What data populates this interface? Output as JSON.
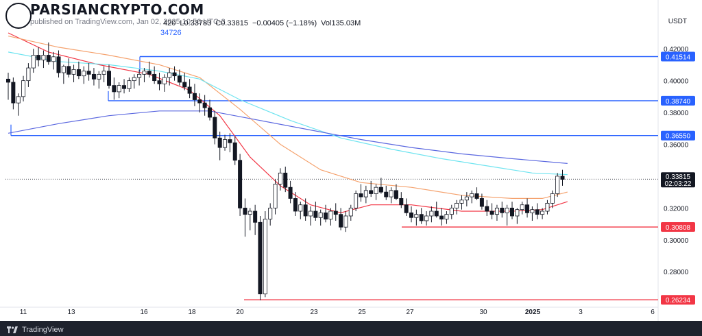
{
  "watermark": {
    "text": "PARSIANCRYPTO.COM"
  },
  "header": {
    "partial_text": "published on TradingView.com, Jan 02, 2025 10:56 UTC-3",
    "ohlc": [
      "420",
      "L0.33783",
      "C0.33815",
      "−0.00405 (−1.18%)",
      "Vol135.03M"
    ],
    "partial_indicator": "34726"
  },
  "currency": "USDT",
  "footer": {
    "brand": "TradingView"
  },
  "colors": {
    "candle": "#131722",
    "blue_level": "#2962ff",
    "red_level": "#f23645",
    "ma_red": "#f23645",
    "ma_orange": "#f5a26e",
    "ma_cyan": "#6fe4f0",
    "ma_blue": "#5b68e0"
  },
  "chart_data": {
    "type": "line",
    "x_tick_labels": [
      "11",
      "13",
      "16",
      "18",
      "20",
      "23",
      "25",
      "27",
      "30",
      "2025",
      "3",
      "6"
    ],
    "y_tick_labels": [
      "0.42000",
      "0.40000",
      "0.38000",
      "0.36000",
      "0.32000",
      "0.30000",
      "0.28000"
    ],
    "ylim": [
      0.262,
      0.43
    ],
    "horizontal_levels": [
      {
        "label": "0.41514",
        "value": 0.41514,
        "color": "blue"
      },
      {
        "label": "0.38740",
        "value": 0.3874,
        "color": "blue"
      },
      {
        "label": "0.36550",
        "value": 0.3655,
        "color": "blue"
      },
      {
        "label": "0.30808",
        "value": 0.30808,
        "color": "red"
      },
      {
        "label": "0.26234",
        "value": 0.26234,
        "color": "red"
      }
    ],
    "last_price": {
      "value": 0.33815,
      "label": "0.33815",
      "countdown": "02:03:22"
    },
    "candles": [
      [
        0.401,
        0.405,
        0.388,
        0.399
      ],
      [
        0.399,
        0.402,
        0.382,
        0.386
      ],
      [
        0.386,
        0.392,
        0.378,
        0.39
      ],
      [
        0.39,
        0.403,
        0.387,
        0.4
      ],
      [
        0.4,
        0.411,
        0.396,
        0.408
      ],
      [
        0.408,
        0.42,
        0.405,
        0.416
      ],
      [
        0.416,
        0.421,
        0.409,
        0.413
      ],
      [
        0.413,
        0.419,
        0.408,
        0.416
      ],
      [
        0.416,
        0.424,
        0.41,
        0.412
      ],
      [
        0.412,
        0.418,
        0.407,
        0.415
      ],
      [
        0.415,
        0.419,
        0.402,
        0.405
      ],
      [
        0.405,
        0.41,
        0.398,
        0.409
      ],
      [
        0.409,
        0.414,
        0.402,
        0.404
      ],
      [
        0.404,
        0.41,
        0.399,
        0.407
      ],
      [
        0.407,
        0.412,
        0.401,
        0.403
      ],
      [
        0.403,
        0.409,
        0.398,
        0.406
      ],
      [
        0.406,
        0.411,
        0.4,
        0.404
      ],
      [
        0.404,
        0.408,
        0.397,
        0.401
      ],
      [
        0.401,
        0.406,
        0.395,
        0.404
      ],
      [
        0.404,
        0.409,
        0.399,
        0.406
      ],
      [
        0.406,
        0.41,
        0.395,
        0.397
      ],
      [
        0.397,
        0.402,
        0.388,
        0.393
      ],
      [
        0.393,
        0.399,
        0.389,
        0.397
      ],
      [
        0.397,
        0.401,
        0.392,
        0.395
      ],
      [
        0.395,
        0.402,
        0.393,
        0.4
      ],
      [
        0.4,
        0.404,
        0.395,
        0.402
      ],
      [
        0.402,
        0.407,
        0.397,
        0.404
      ],
      [
        0.404,
        0.408,
        0.399,
        0.406
      ],
      [
        0.406,
        0.412,
        0.402,
        0.404
      ],
      [
        0.404,
        0.409,
        0.398,
        0.4
      ],
      [
        0.4,
        0.405,
        0.394,
        0.398
      ],
      [
        0.398,
        0.404,
        0.393,
        0.402
      ],
      [
        0.402,
        0.408,
        0.397,
        0.405
      ],
      [
        0.405,
        0.409,
        0.4,
        0.403
      ],
      [
        0.403,
        0.407,
        0.397,
        0.399
      ],
      [
        0.399,
        0.405,
        0.394,
        0.396
      ],
      [
        0.396,
        0.401,
        0.389,
        0.392
      ],
      [
        0.392,
        0.398,
        0.384,
        0.388
      ],
      [
        0.388,
        0.392,
        0.38,
        0.386
      ],
      [
        0.386,
        0.391,
        0.378,
        0.383
      ],
      [
        0.383,
        0.388,
        0.375,
        0.377
      ],
      [
        0.377,
        0.381,
        0.36,
        0.364
      ],
      [
        0.364,
        0.368,
        0.35,
        0.358
      ],
      [
        0.358,
        0.366,
        0.356,
        0.363
      ],
      [
        0.363,
        0.367,
        0.355,
        0.361
      ],
      [
        0.361,
        0.365,
        0.347,
        0.35
      ],
      [
        0.35,
        0.354,
        0.315,
        0.32
      ],
      [
        0.32,
        0.326,
        0.302,
        0.316
      ],
      [
        0.316,
        0.32,
        0.306,
        0.318
      ],
      [
        0.318,
        0.322,
        0.303,
        0.311
      ],
      [
        0.311,
        0.315,
        0.262,
        0.266
      ],
      [
        0.266,
        0.318,
        0.264,
        0.313
      ],
      [
        0.313,
        0.323,
        0.309,
        0.32
      ],
      [
        0.32,
        0.338,
        0.316,
        0.335
      ],
      [
        0.335,
        0.345,
        0.331,
        0.342
      ],
      [
        0.342,
        0.346,
        0.33,
        0.333
      ],
      [
        0.333,
        0.337,
        0.323,
        0.326
      ],
      [
        0.326,
        0.33,
        0.315,
        0.318
      ],
      [
        0.318,
        0.324,
        0.313,
        0.322
      ],
      [
        0.322,
        0.326,
        0.312,
        0.315
      ],
      [
        0.315,
        0.321,
        0.309,
        0.318
      ],
      [
        0.318,
        0.324,
        0.312,
        0.314
      ],
      [
        0.314,
        0.319,
        0.309,
        0.317
      ],
      [
        0.317,
        0.322,
        0.311,
        0.313
      ],
      [
        0.313,
        0.32,
        0.309,
        0.318
      ],
      [
        0.318,
        0.323,
        0.312,
        0.316
      ],
      [
        0.316,
        0.32,
        0.306,
        0.308
      ],
      [
        0.308,
        0.318,
        0.305,
        0.315
      ],
      [
        0.315,
        0.322,
        0.312,
        0.32
      ],
      [
        0.32,
        0.331,
        0.318,
        0.329
      ],
      [
        0.329,
        0.335,
        0.324,
        0.327
      ],
      [
        0.327,
        0.334,
        0.323,
        0.331
      ],
      [
        0.331,
        0.337,
        0.327,
        0.329
      ],
      [
        0.329,
        0.335,
        0.325,
        0.333
      ],
      [
        0.333,
        0.339,
        0.329,
        0.33
      ],
      [
        0.33,
        0.334,
        0.325,
        0.327
      ],
      [
        0.327,
        0.333,
        0.323,
        0.331
      ],
      [
        0.331,
        0.335,
        0.325,
        0.326
      ],
      [
        0.326,
        0.33,
        0.32,
        0.322
      ],
      [
        0.322,
        0.326,
        0.315,
        0.317
      ],
      [
        0.317,
        0.321,
        0.311,
        0.314
      ],
      [
        0.314,
        0.319,
        0.309,
        0.316
      ],
      [
        0.316,
        0.32,
        0.31,
        0.312
      ],
      [
        0.312,
        0.318,
        0.309,
        0.315
      ],
      [
        0.315,
        0.321,
        0.311,
        0.318
      ],
      [
        0.318,
        0.324,
        0.314,
        0.315
      ],
      [
        0.315,
        0.32,
        0.309,
        0.313
      ],
      [
        0.313,
        0.318,
        0.31,
        0.316
      ],
      [
        0.316,
        0.322,
        0.313,
        0.32
      ],
      [
        0.32,
        0.325,
        0.316,
        0.323
      ],
      [
        0.323,
        0.328,
        0.319,
        0.325
      ],
      [
        0.325,
        0.33,
        0.321,
        0.327
      ],
      [
        0.327,
        0.331,
        0.323,
        0.329
      ],
      [
        0.329,
        0.333,
        0.325,
        0.326
      ],
      [
        0.326,
        0.329,
        0.319,
        0.321
      ],
      [
        0.321,
        0.325,
        0.315,
        0.318
      ],
      [
        0.318,
        0.323,
        0.313,
        0.316
      ],
      [
        0.316,
        0.322,
        0.312,
        0.32
      ],
      [
        0.32,
        0.324,
        0.314,
        0.317
      ],
      [
        0.317,
        0.322,
        0.309,
        0.32
      ],
      [
        0.32,
        0.324,
        0.313,
        0.315
      ],
      [
        0.315,
        0.32,
        0.31,
        0.319
      ],
      [
        0.319,
        0.324,
        0.316,
        0.322
      ],
      [
        0.322,
        0.326,
        0.314,
        0.317
      ],
      [
        0.317,
        0.321,
        0.312,
        0.319
      ],
      [
        0.319,
        0.323,
        0.313,
        0.316
      ],
      [
        0.316,
        0.32,
        0.313,
        0.318
      ],
      [
        0.318,
        0.325,
        0.316,
        0.323
      ],
      [
        0.323,
        0.331,
        0.32,
        0.329
      ],
      [
        0.329,
        0.342,
        0.327,
        0.34
      ],
      [
        0.34,
        0.344,
        0.334,
        0.338
      ]
    ],
    "moving_averages": [
      {
        "color": "red",
        "values": [
          [
            0,
            0.43
          ],
          [
            8,
            0.418
          ],
          [
            18,
            0.41
          ],
          [
            28,
            0.404
          ],
          [
            36,
            0.394
          ],
          [
            42,
            0.378
          ],
          [
            48,
            0.352
          ],
          [
            54,
            0.334
          ],
          [
            60,
            0.322
          ],
          [
            66,
            0.317
          ],
          [
            72,
            0.322
          ],
          [
            80,
            0.322
          ],
          [
            90,
            0.318
          ],
          [
            100,
            0.318
          ],
          [
            106,
            0.319
          ],
          [
            111,
            0.324
          ]
        ]
      },
      {
        "color": "orange",
        "values": [
          [
            0,
            0.428
          ],
          [
            10,
            0.421
          ],
          [
            20,
            0.416
          ],
          [
            30,
            0.41
          ],
          [
            38,
            0.402
          ],
          [
            46,
            0.382
          ],
          [
            54,
            0.36
          ],
          [
            62,
            0.344
          ],
          [
            70,
            0.336
          ],
          [
            80,
            0.333
          ],
          [
            90,
            0.328
          ],
          [
            100,
            0.326
          ],
          [
            106,
            0.326
          ],
          [
            111,
            0.33
          ]
        ]
      },
      {
        "color": "cyan",
        "values": [
          [
            0,
            0.418
          ],
          [
            10,
            0.412
          ],
          [
            20,
            0.41
          ],
          [
            30,
            0.406
          ],
          [
            38,
            0.401
          ],
          [
            46,
            0.388
          ],
          [
            56,
            0.375
          ],
          [
            66,
            0.364
          ],
          [
            76,
            0.357
          ],
          [
            86,
            0.351
          ],
          [
            96,
            0.346
          ],
          [
            104,
            0.342
          ],
          [
            111,
            0.341
          ]
        ]
      },
      {
        "color": "blue",
        "values": [
          [
            0,
            0.367
          ],
          [
            10,
            0.373
          ],
          [
            20,
            0.378
          ],
          [
            30,
            0.381
          ],
          [
            40,
            0.381
          ],
          [
            50,
            0.375
          ],
          [
            60,
            0.369
          ],
          [
            70,
            0.363
          ],
          [
            80,
            0.358
          ],
          [
            90,
            0.354
          ],
          [
            100,
            0.351
          ],
          [
            111,
            0.348
          ]
        ]
      }
    ]
  }
}
